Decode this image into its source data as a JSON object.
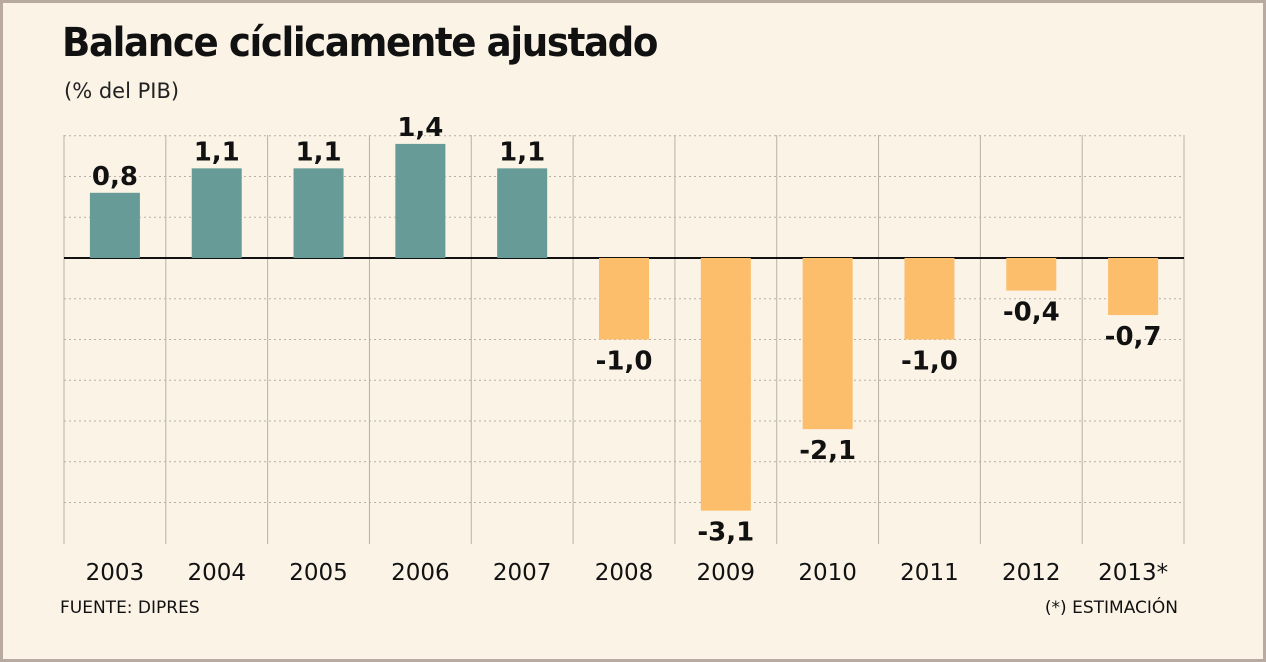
{
  "header": {
    "title": "Balance cíclicamente ajustado",
    "subtitle": "(% del PIB)"
  },
  "footer": {
    "source": "FUENTE: DIPRES",
    "note": "(*) ESTIMACIÓN"
  },
  "colors": {
    "positive": "#669b98",
    "negative": "#fcbe6a",
    "background": "#faf3e6",
    "grid": "#b8b0a6",
    "zero_line": "#111111"
  },
  "chart_data": {
    "type": "bar",
    "title": "Balance cíclicamente ajustado",
    "subtitle": "(% del PIB)",
    "categories": [
      "2003",
      "2004",
      "2005",
      "2006",
      "2007",
      "2008",
      "2009",
      "2010",
      "2011",
      "2012",
      "2013*"
    ],
    "values": [
      0.8,
      1.1,
      1.1,
      1.4,
      1.1,
      -1.0,
      -3.1,
      -2.1,
      -1.0,
      -0.4,
      -0.7
    ],
    "data_labels": [
      "0,8",
      "1,1",
      "1,1",
      "1,4",
      "1,1",
      "-1,0",
      "-3,1",
      "-2,1",
      "-1,0",
      "-0,4",
      "-0,7"
    ],
    "ylim": [
      -3.5,
      1.5
    ],
    "grid": true,
    "xlabel": "",
    "ylabel": ""
  }
}
